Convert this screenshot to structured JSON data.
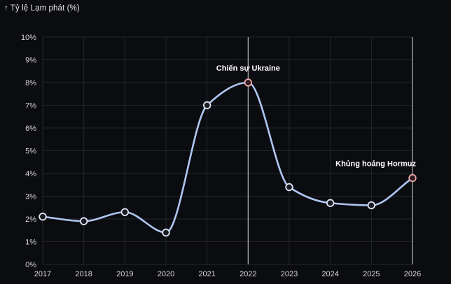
{
  "chart_data": {
    "type": "line",
    "title": "",
    "ylabel": "Tỷ lệ Lạm phát (%)",
    "ylabel_arrow": "↑",
    "xlabel": "",
    "x": [
      2017,
      2018,
      2019,
      2020,
      2021,
      2022,
      2023,
      2024,
      2025,
      2026
    ],
    "series": [
      {
        "values": [
          2.1,
          1.9,
          2.3,
          1.4,
          7.0,
          8.0,
          3.4,
          2.7,
          2.6,
          3.8
        ]
      }
    ],
    "ylim": [
      0,
      10
    ],
    "y_ticks": [
      "0%",
      "1%",
      "2%",
      "3%",
      "4%",
      "5%",
      "6%",
      "7%",
      "8%",
      "9%",
      "10%"
    ],
    "x_ticks": [
      "2017",
      "2018",
      "2019",
      "2020",
      "2021",
      "2022",
      "2023",
      "2024",
      "2025",
      "2026"
    ],
    "grid": true,
    "annotations": [
      {
        "x": 2022,
        "y": 8.0,
        "text": "Chiến sự Ukraine"
      },
      {
        "x": 2026,
        "y": 3.8,
        "text": "Khủng hoảng Hormuz"
      }
    ],
    "colors": {
      "background": "#0b0c10",
      "grid": "#24262d",
      "line": "#aec6f2",
      "marker_fill": "#1a1c22",
      "marker_stroke": "#dfe6f5",
      "highlight_marker_fill": "#2a1c22",
      "highlight_marker_stroke": "#f0a8a8",
      "vline": "#b8b8b8",
      "text": "#dcdcdc"
    }
  }
}
